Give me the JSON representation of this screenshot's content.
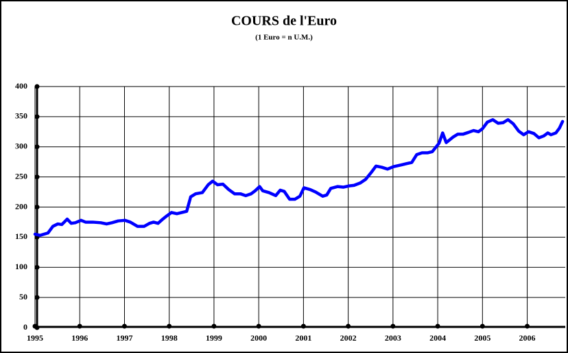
{
  "chart_data": {
    "type": "line",
    "title": "COURS de l'Euro",
    "subtitle": "(1 Euro = n U.M.)",
    "x": [
      1995.0,
      1995.11,
      1995.29,
      1995.4,
      1995.51,
      1995.6,
      1995.72,
      1995.81,
      1995.9,
      1996.03,
      1996.13,
      1996.29,
      1996.47,
      1996.6,
      1996.72,
      1996.86,
      1997.01,
      1997.13,
      1997.29,
      1997.44,
      1997.56,
      1997.65,
      1997.75,
      1997.84,
      1997.94,
      1998.05,
      1998.17,
      1998.28,
      1998.39,
      1998.48,
      1998.59,
      1998.74,
      1998.87,
      1998.97,
      1999.08,
      1999.2,
      1999.33,
      1999.46,
      1999.59,
      1999.71,
      1999.83,
      1999.92,
      2000.02,
      2000.09,
      2000.23,
      2000.38,
      2000.48,
      2000.57,
      2000.69,
      2000.81,
      2000.92,
      2001.01,
      2001.15,
      2001.27,
      2001.43,
      2001.52,
      2001.61,
      2001.76,
      2001.89,
      2002.01,
      2002.13,
      2002.27,
      2002.39,
      2002.52,
      2002.62,
      2002.75,
      2002.88,
      2003.01,
      2003.19,
      2003.3,
      2003.42,
      2003.53,
      2003.65,
      2003.77,
      2003.88,
      2004.03,
      2004.11,
      2004.19,
      2004.34,
      2004.45,
      2004.57,
      2004.69,
      2004.8,
      2004.91,
      2005.0,
      2005.11,
      2005.23,
      2005.35,
      2005.46,
      2005.57,
      2005.69,
      2005.81,
      2005.92,
      2006.03,
      2006.15,
      2006.26,
      2006.37,
      2006.46,
      2006.53,
      2006.64,
      2006.72,
      2006.79
    ],
    "series": [
      {
        "color": "#0000ff",
        "values": [
          155,
          153,
          157,
          168,
          172,
          171,
          180,
          173,
          174,
          178,
          175,
          175,
          174,
          172,
          174,
          177,
          178,
          175,
          168,
          168,
          173,
          175,
          173,
          179,
          185,
          191,
          189,
          191,
          193,
          217,
          222,
          224,
          237,
          243,
          237,
          238,
          229,
          222,
          222,
          219,
          222,
          227,
          234,
          227,
          224,
          219,
          228,
          226,
          213,
          213,
          218,
          232,
          229,
          225,
          218,
          220,
          231,
          234,
          233,
          235,
          236,
          240,
          246,
          258,
          268,
          266,
          263,
          267,
          270,
          272,
          274,
          287,
          290,
          290,
          292,
          306,
          323,
          307,
          316,
          321,
          321,
          324,
          327,
          325,
          330,
          341,
          345,
          339,
          340,
          345,
          338,
          326,
          320,
          325,
          322,
          315,
          318,
          323,
          320,
          323,
          331,
          342
        ]
      }
    ],
    "xlim": [
      1995,
      2006.85
    ],
    "xticks": [
      1995,
      1996,
      1997,
      1998,
      1999,
      2000,
      2001,
      2002,
      2003,
      2004,
      2005,
      2006
    ],
    "ylim": [
      0,
      400
    ],
    "yticks": [
      0,
      50,
      100,
      150,
      200,
      250,
      300,
      350,
      400
    ],
    "grid": true
  }
}
